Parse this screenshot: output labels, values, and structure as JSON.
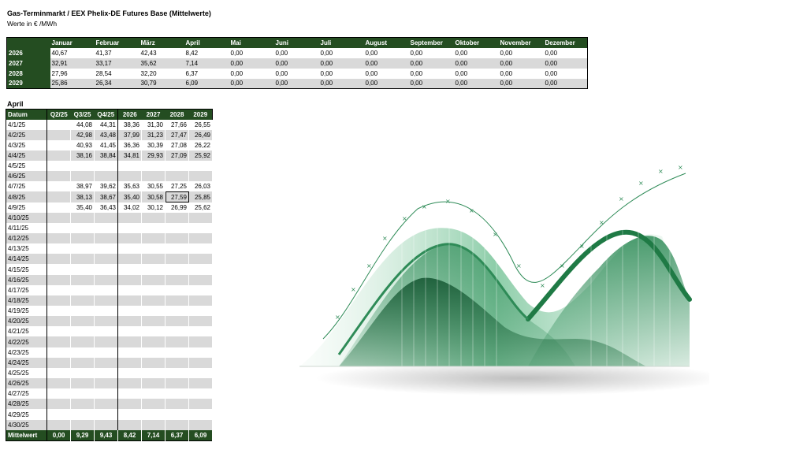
{
  "header": {
    "title": "Gas-Terminmarkt / EEX Phelix-DE Futures Base (Mittelwerte)",
    "subtitle": "Werte in € /MWh"
  },
  "yearly": {
    "months": [
      "Januar",
      "Februar",
      "März",
      "April",
      "Mai",
      "Juni",
      "Juli",
      "August",
      "September",
      "Oktober",
      "November",
      "Dezember"
    ],
    "rows": [
      {
        "year": "2026",
        "values": [
          "40,67",
          "41,37",
          "42,43",
          "8,42",
          "0,00",
          "0,00",
          "0,00",
          "0,00",
          "0,00",
          "0,00",
          "0,00",
          "0,00"
        ]
      },
      {
        "year": "2027",
        "values": [
          "32,91",
          "33,17",
          "35,62",
          "7,14",
          "0,00",
          "0,00",
          "0,00",
          "0,00",
          "0,00",
          "0,00",
          "0,00",
          "0,00"
        ]
      },
      {
        "year": "2028",
        "values": [
          "27,96",
          "28,54",
          "32,20",
          "6,37",
          "0,00",
          "0,00",
          "0,00",
          "0,00",
          "0,00",
          "0,00",
          "0,00",
          "0,00"
        ]
      },
      {
        "year": "2029",
        "values": [
          "25,86",
          "26,34",
          "30,79",
          "6,09",
          "0,00",
          "0,00",
          "0,00",
          "0,00",
          "0,00",
          "0,00",
          "0,00",
          "0,00"
        ]
      }
    ]
  },
  "daily": {
    "month_label": "April",
    "headers": [
      "Datum",
      "Q2/25",
      "Q3/25",
      "Q4/25",
      "2026",
      "2027",
      "2028",
      "2029"
    ],
    "rows": [
      [
        "4/1/25",
        "",
        "44,08",
        "44,31",
        "38,36",
        "31,30",
        "27,66",
        "26,55"
      ],
      [
        "4/2/25",
        "",
        "42,98",
        "43,48",
        "37,99",
        "31,23",
        "27,47",
        "26,49"
      ],
      [
        "4/3/25",
        "",
        "40,93",
        "41,45",
        "36,36",
        "30,39",
        "27,08",
        "26,22"
      ],
      [
        "4/4/25",
        "",
        "38,16",
        "38,84",
        "34,81",
        "29,93",
        "27,09",
        "25,92"
      ],
      [
        "4/5/25",
        "",
        "",
        "",
        "",
        "",
        "",
        ""
      ],
      [
        "4/6/25",
        "",
        "",
        "",
        "",
        "",
        "",
        ""
      ],
      [
        "4/7/25",
        "",
        "38,97",
        "39,62",
        "35,63",
        "30,55",
        "27,25",
        "26,03"
      ],
      [
        "4/8/25",
        "",
        "38,13",
        "38,67",
        "35,40",
        "30,58",
        "27,59",
        "25,85"
      ],
      [
        "4/9/25",
        "",
        "35,40",
        "36,43",
        "34,02",
        "30,12",
        "26,99",
        "25,62"
      ],
      [
        "4/10/25",
        "",
        "",
        "",
        "",
        "",
        "",
        ""
      ],
      [
        "4/11/25",
        "",
        "",
        "",
        "",
        "",
        "",
        ""
      ],
      [
        "4/12/25",
        "",
        "",
        "",
        "",
        "",
        "",
        ""
      ],
      [
        "4/13/25",
        "",
        "",
        "",
        "",
        "",
        "",
        ""
      ],
      [
        "4/14/25",
        "",
        "",
        "",
        "",
        "",
        "",
        ""
      ],
      [
        "4/15/25",
        "",
        "",
        "",
        "",
        "",
        "",
        ""
      ],
      [
        "4/16/25",
        "",
        "",
        "",
        "",
        "",
        "",
        ""
      ],
      [
        "4/17/25",
        "",
        "",
        "",
        "",
        "",
        "",
        ""
      ],
      [
        "4/18/25",
        "",
        "",
        "",
        "",
        "",
        "",
        ""
      ],
      [
        "4/19/25",
        "",
        "",
        "",
        "",
        "",
        "",
        ""
      ],
      [
        "4/20/25",
        "",
        "",
        "",
        "",
        "",
        "",
        ""
      ],
      [
        "4/21/25",
        "",
        "",
        "",
        "",
        "",
        "",
        ""
      ],
      [
        "4/22/25",
        "",
        "",
        "",
        "",
        "",
        "",
        ""
      ],
      [
        "4/23/25",
        "",
        "",
        "",
        "",
        "",
        "",
        ""
      ],
      [
        "4/24/25",
        "",
        "",
        "",
        "",
        "",
        "",
        ""
      ],
      [
        "4/25/25",
        "",
        "",
        "",
        "",
        "",
        "",
        ""
      ],
      [
        "4/26/25",
        "",
        "",
        "",
        "",
        "",
        "",
        ""
      ],
      [
        "4/27/25",
        "",
        "",
        "",
        "",
        "",
        "",
        ""
      ],
      [
        "4/28/25",
        "",
        "",
        "",
        "",
        "",
        "",
        ""
      ],
      [
        "4/29/25",
        "",
        "",
        "",
        "",
        "",
        "",
        ""
      ],
      [
        "4/30/25",
        "",
        "",
        "",
        "",
        "",
        "",
        ""
      ]
    ],
    "footer": [
      "Mittelwert",
      "0,00",
      "9,29",
      "9,43",
      "8,42",
      "7,14",
      "6,37",
      "6,09"
    ]
  },
  "colors": {
    "header_green": "#244d21",
    "row_gray": "#d9d9d9",
    "art_green_dark": "#1f6b3d",
    "art_green_light": "#3aa86a"
  }
}
